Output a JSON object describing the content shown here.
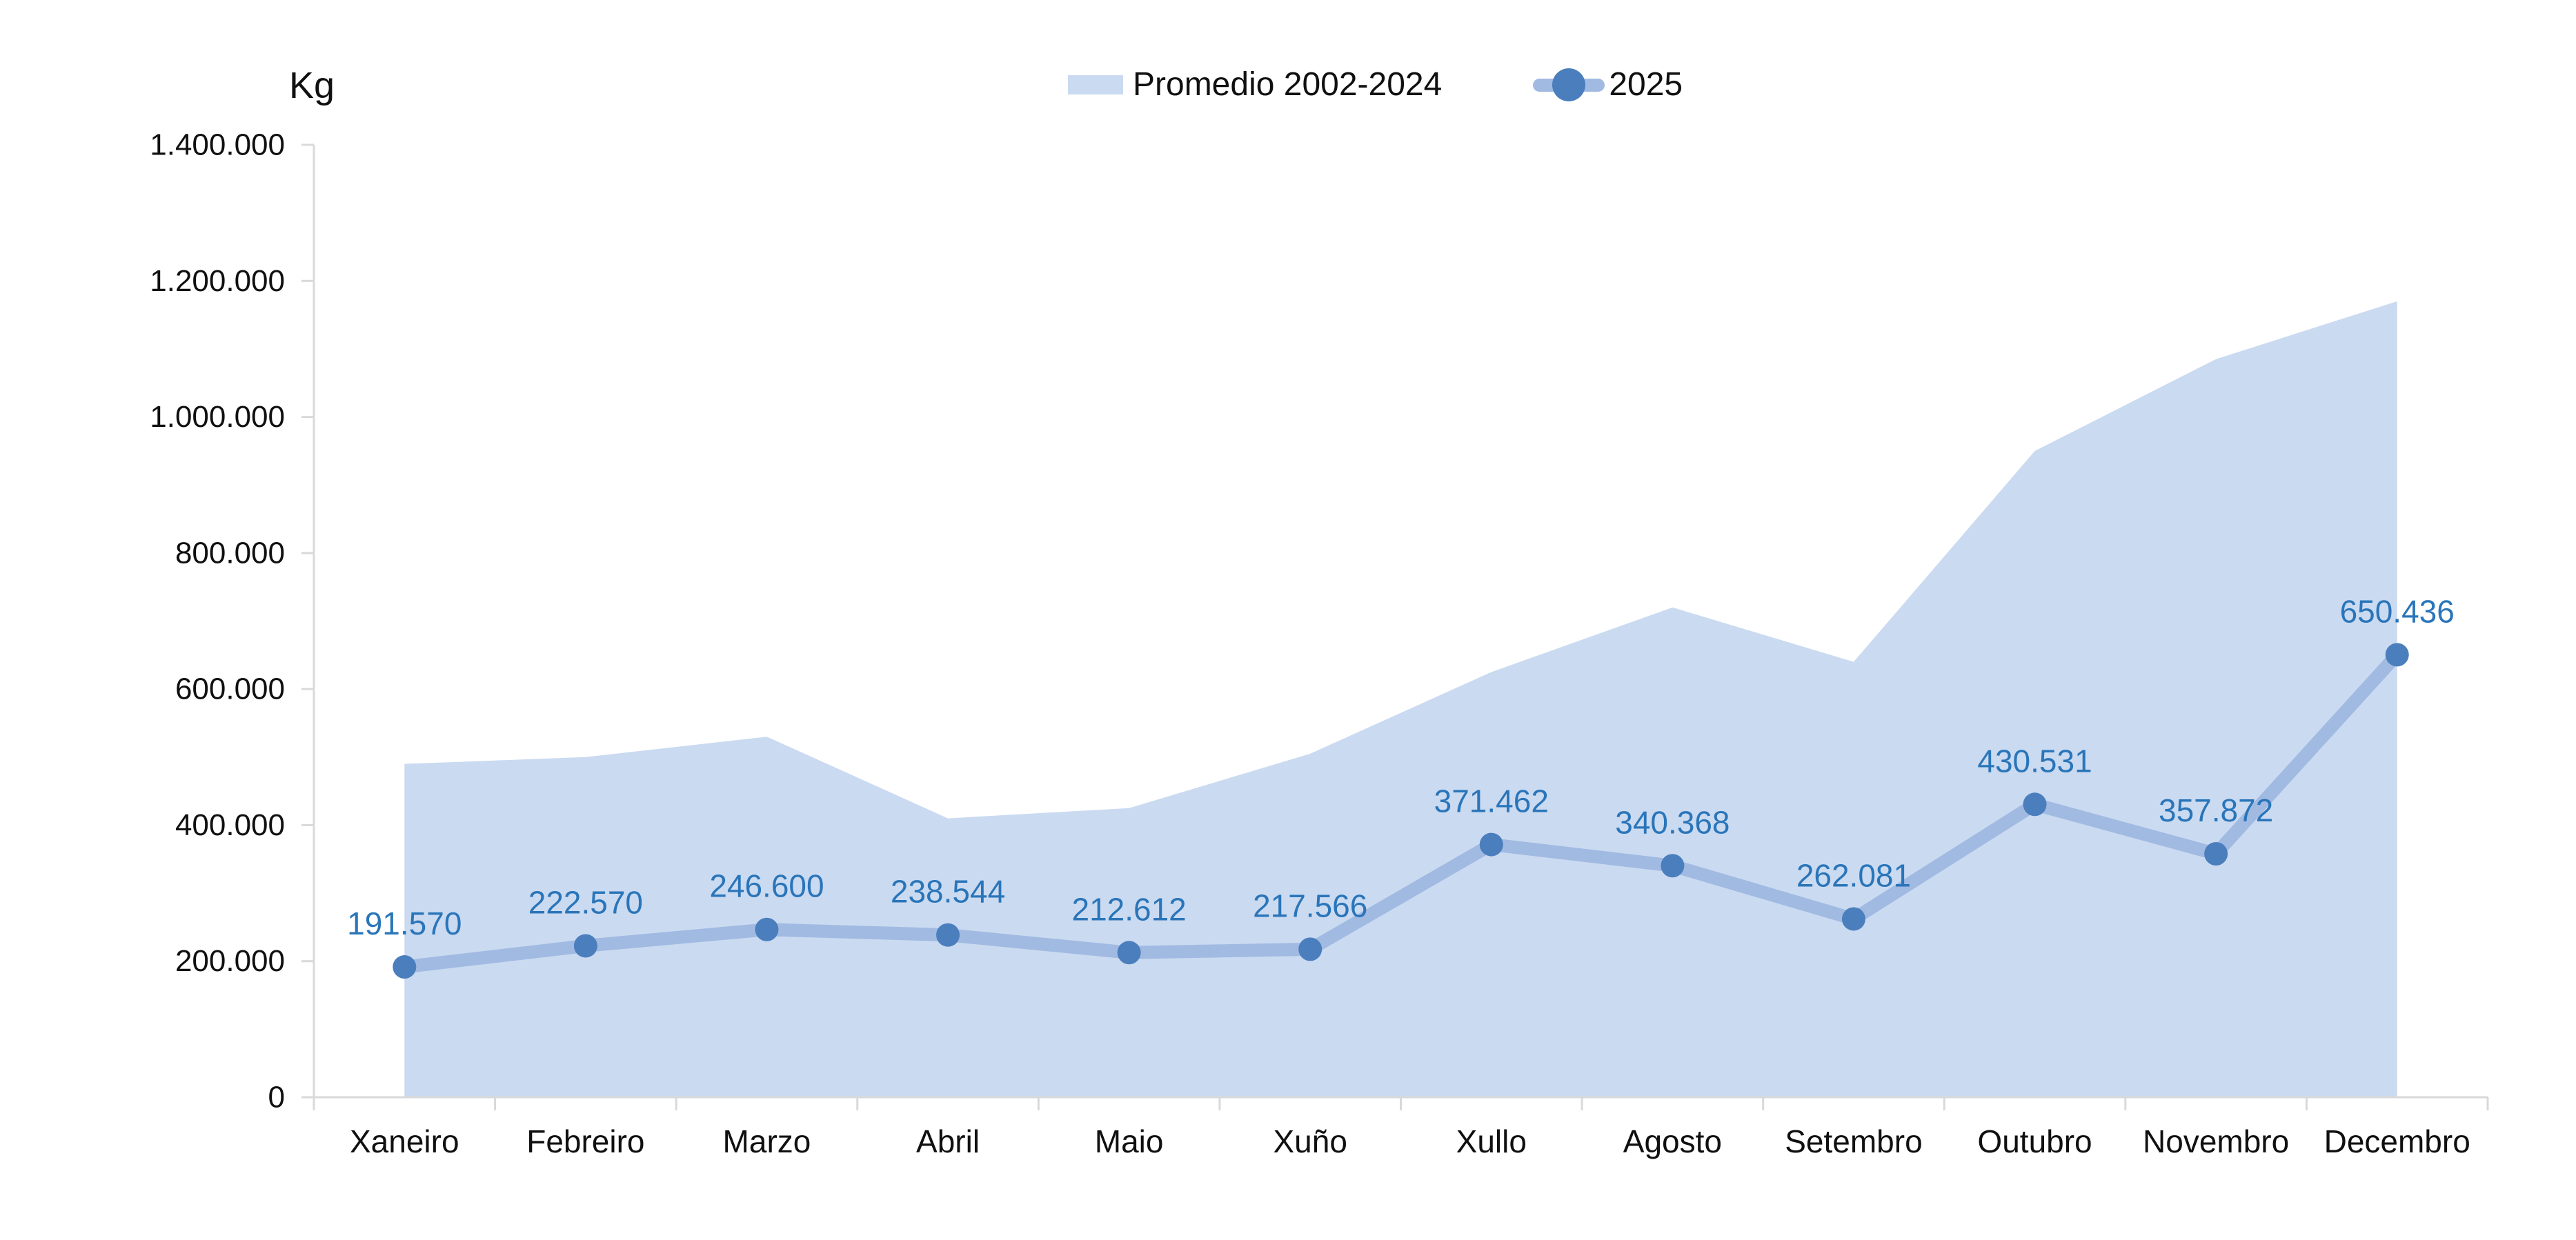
{
  "legend": {
    "position": "top-center",
    "items": [
      {
        "label": "Promedio 2002-2024",
        "swatch": "area-rect"
      },
      {
        "label": "2025",
        "swatch": "line-with-dot"
      }
    ]
  },
  "chart_data": {
    "type": "area+line",
    "title": "",
    "xlabel": "",
    "ylabel": "Kg",
    "categories": [
      "Xaneiro",
      "Febreiro",
      "Marzo",
      "Abril",
      "Maio",
      "Xuño",
      "Xullo",
      "Agosto",
      "Setembro",
      "Outubro",
      "Novembro",
      "Decembro"
    ],
    "series": [
      {
        "name": "Promedio 2002-2024",
        "type": "area",
        "color": "#CADAF1",
        "values": [
          490000,
          500000,
          530000,
          410000,
          425000,
          505000,
          625000,
          720000,
          640000,
          950000,
          1085000,
          1170000
        ]
      },
      {
        "name": "2025",
        "type": "line",
        "color": "#A1BAE1",
        "marker_color": "#4B7EBD",
        "label_color": "#2A75B9",
        "values": [
          191570,
          222570,
          246600,
          238544,
          212612,
          217566,
          371462,
          340368,
          262081,
          430531,
          357872,
          650436
        ],
        "point_labels": [
          "191.570",
          "222.570",
          "246.600",
          "238.544",
          "212.612",
          "217.566",
          "371.462",
          "340.368",
          "262.081",
          "430.531",
          "357.872",
          "650.436"
        ]
      }
    ],
    "y_axis": {
      "min": 0,
      "max": 1400000,
      "step": 200000,
      "tick_values": [
        0,
        200000,
        400000,
        600000,
        800000,
        1000000,
        1200000,
        1400000
      ],
      "tick_labels": [
        "0",
        "200.000",
        "400.000",
        "600.000",
        "800.000",
        "1.000.000",
        "1.200.000",
        "1.400.000"
      ]
    },
    "grid": "off",
    "legend_position": "top",
    "axis_color": "#D9D9D9",
    "text_color": "#101010"
  }
}
